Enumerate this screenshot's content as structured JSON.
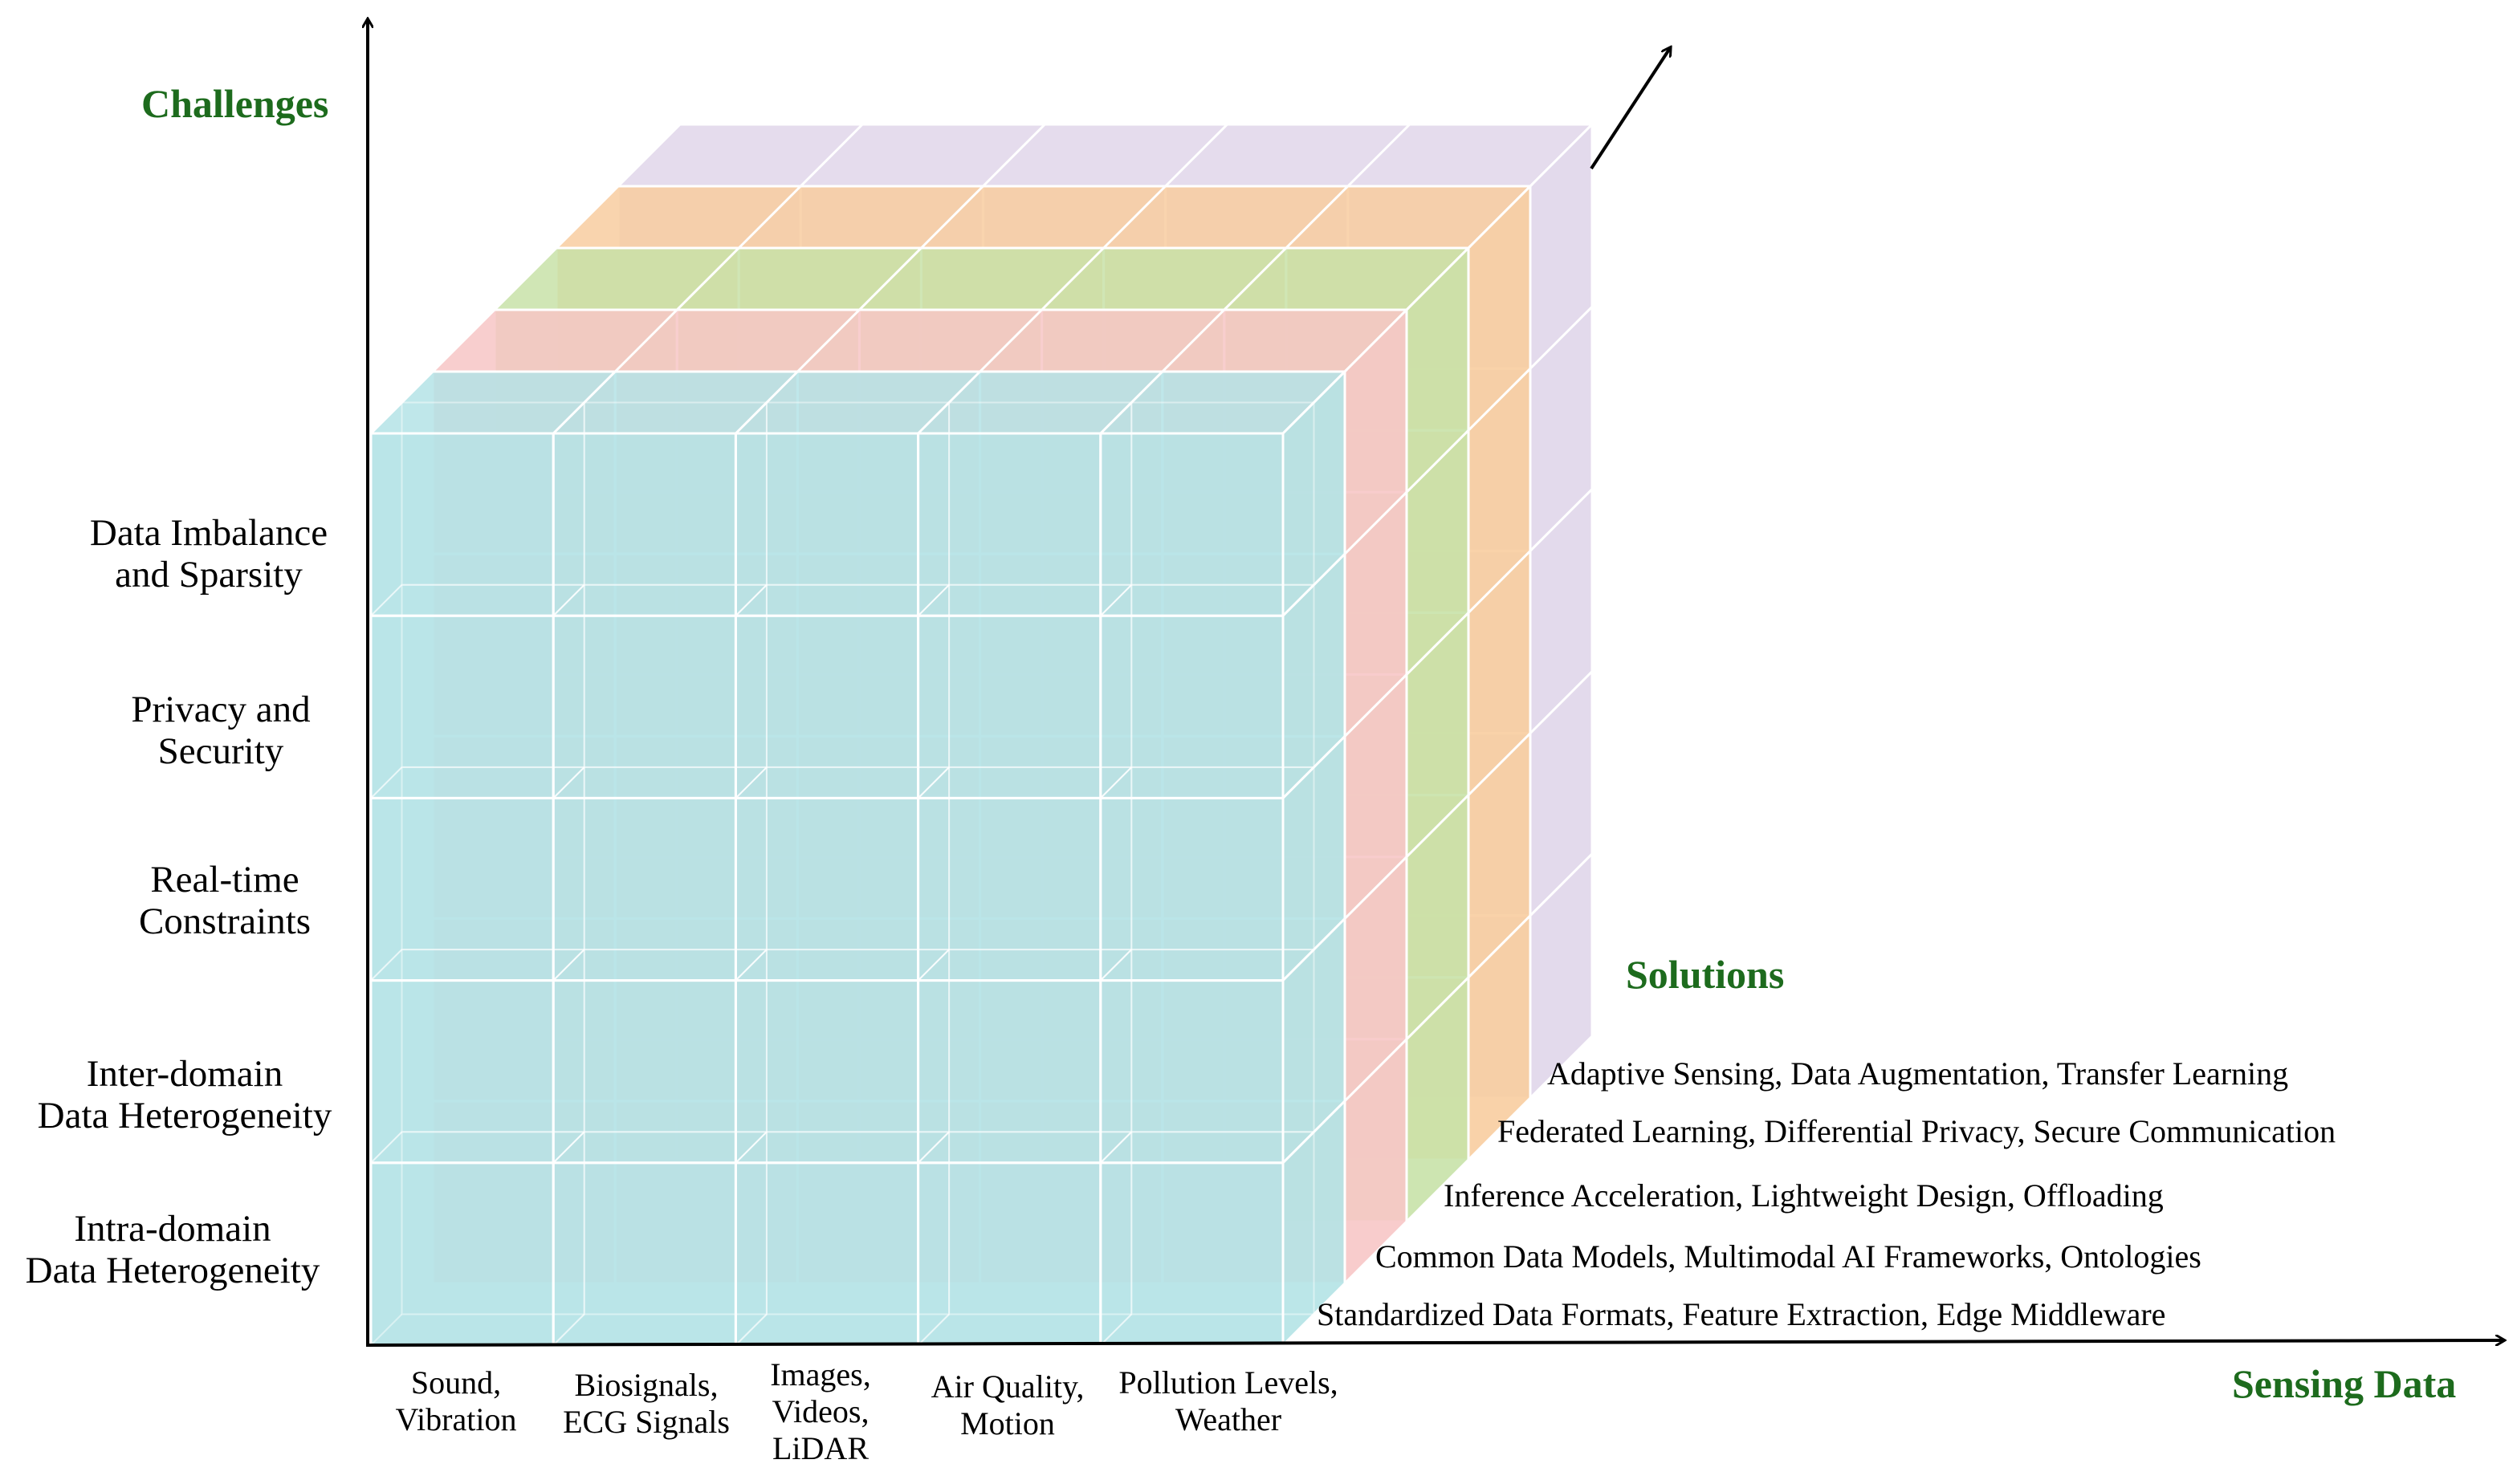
{
  "axes": {
    "challenges_title": "Challenges",
    "sensing_title": "Sensing Data",
    "solutions_title": "Solutions"
  },
  "challenges": [
    {
      "line1": "Data Imbalance",
      "line2": "and Sparsity"
    },
    {
      "line1": "Privacy and",
      "line2": "Security"
    },
    {
      "line1": "Real-time",
      "line2": "Constraints"
    },
    {
      "line1": "Inter-domain",
      "line2": "Data Heterogeneity"
    },
    {
      "line1": "Intra-domain",
      "line2": "Data Heterogeneity"
    }
  ],
  "sensing_data": [
    {
      "line1": "Sound,",
      "line2": "Vibration"
    },
    {
      "line1": "Biosignals,",
      "line2": "ECG Signals"
    },
    {
      "line1": "Images,",
      "line2": "Videos,",
      "line3": "LiDAR"
    },
    {
      "line1": "Air Quality,",
      "line2": "Motion"
    },
    {
      "line1": "Pollution Levels,",
      "line2": "Weather"
    }
  ],
  "solutions": [
    "Adaptive Sensing, Data Augmentation, Transfer Learning",
    "Federated Learning, Differential Privacy, Secure Communication",
    "Inference Acceleration, Lightweight Design, Offloading",
    "Common Data Models, Multimodal AI Frameworks, Ontologies",
    "Standardized Data Formats, Feature Extraction, Edge Middleware"
  ],
  "layer_colors": [
    "#b4e3e6",
    "#f7c6c6",
    "#c8e2a8",
    "#f8cda0",
    "#e0d6ea"
  ],
  "axis_color": "#000000",
  "title_color": "#1d6b1d"
}
